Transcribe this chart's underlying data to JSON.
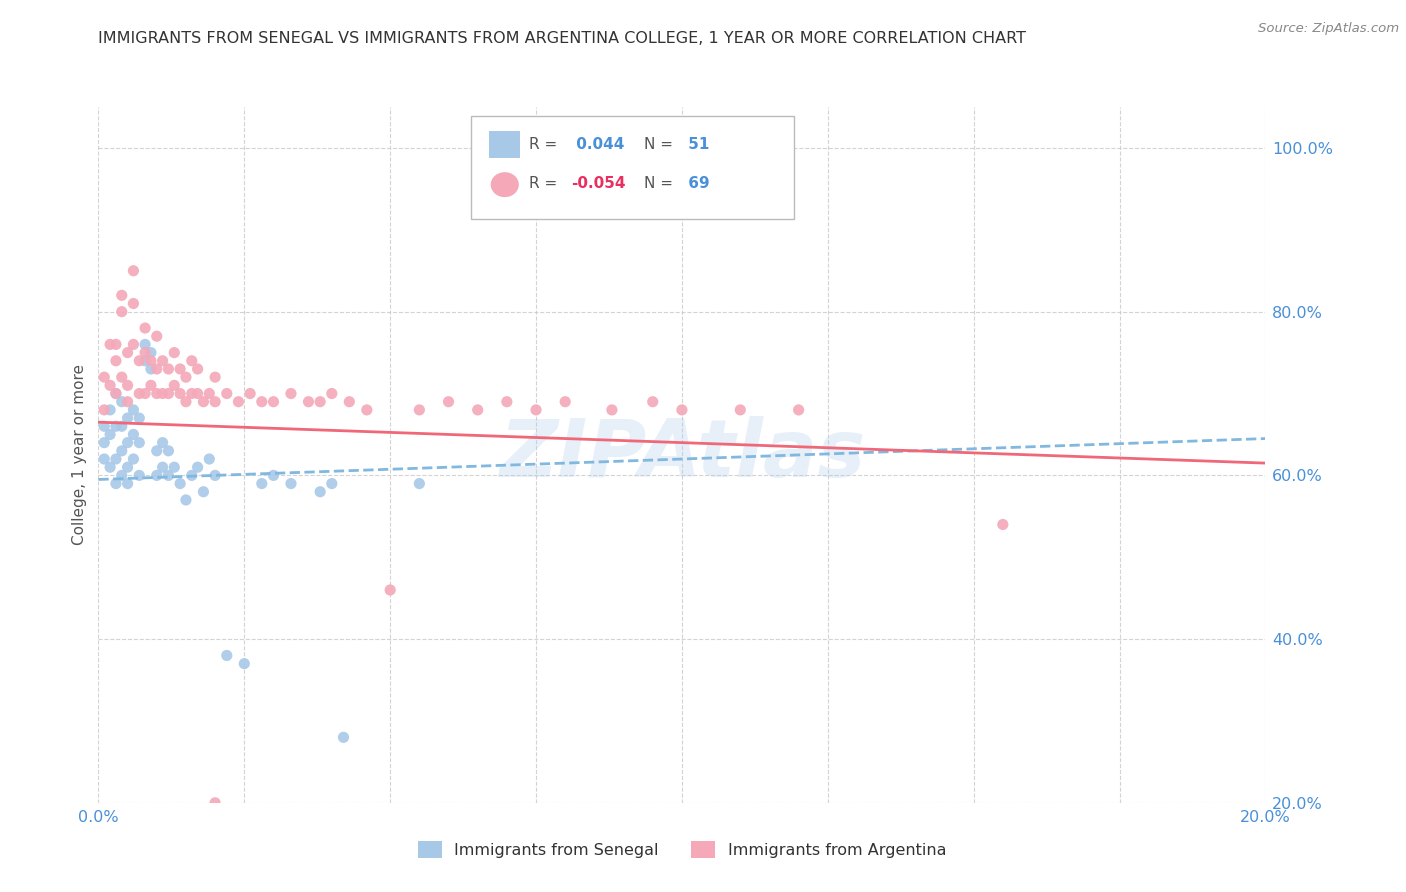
{
  "title": "IMMIGRANTS FROM SENEGAL VS IMMIGRANTS FROM ARGENTINA COLLEGE, 1 YEAR OR MORE CORRELATION CHART",
  "source": "Source: ZipAtlas.com",
  "ylabel": "College, 1 year or more",
  "xmin": 0.0,
  "xmax": 0.2,
  "ymin": 0.2,
  "ymax": 1.05,
  "yticks": [
    0.2,
    0.4,
    0.6,
    0.8,
    1.0
  ],
  "ytick_labels": [
    "20.0%",
    "40.0%",
    "60.0%",
    "80.0%",
    "100.0%"
  ],
  "xticks": [
    0.0,
    0.025,
    0.05,
    0.075,
    0.1,
    0.125,
    0.15,
    0.175,
    0.2
  ],
  "xtick_labels": [
    "0.0%",
    "",
    "",
    "",
    "",
    "",
    "",
    "",
    "20.0%"
  ],
  "senegal_R": 0.044,
  "senegal_N": 51,
  "argentina_R": -0.054,
  "argentina_N": 69,
  "watermark": "ZIPAtlas",
  "senegal_color": "#a8c8e8",
  "argentina_color": "#f4a8b8",
  "senegal_line_color": "#80b8e0",
  "argentina_line_color": "#f06878",
  "legend_senegal_R_color": "#4a90d8",
  "legend_argentina_R_color": "#e83060",
  "legend_N_color": "#4a90d8",
  "axis_label_color": "#4a90d8",
  "title_color": "#333333",
  "grid_color": "#c8c8c8",
  "senegal_x": [
    0.001,
    0.001,
    0.001,
    0.002,
    0.002,
    0.002,
    0.003,
    0.003,
    0.003,
    0.003,
    0.004,
    0.004,
    0.004,
    0.004,
    0.005,
    0.005,
    0.005,
    0.005,
    0.006,
    0.006,
    0.006,
    0.007,
    0.007,
    0.007,
    0.008,
    0.008,
    0.009,
    0.009,
    0.01,
    0.01,
    0.011,
    0.011,
    0.012,
    0.012,
    0.013,
    0.014,
    0.015,
    0.016,
    0.017,
    0.018,
    0.019,
    0.02,
    0.022,
    0.025,
    0.028,
    0.03,
    0.033,
    0.038,
    0.04,
    0.042,
    0.055
  ],
  "senegal_y": [
    0.62,
    0.64,
    0.66,
    0.61,
    0.65,
    0.68,
    0.59,
    0.62,
    0.66,
    0.7,
    0.6,
    0.63,
    0.66,
    0.69,
    0.61,
    0.64,
    0.67,
    0.59,
    0.62,
    0.65,
    0.68,
    0.6,
    0.64,
    0.67,
    0.74,
    0.76,
    0.75,
    0.73,
    0.6,
    0.63,
    0.61,
    0.64,
    0.6,
    0.63,
    0.61,
    0.59,
    0.57,
    0.6,
    0.61,
    0.58,
    0.62,
    0.6,
    0.38,
    0.37,
    0.59,
    0.6,
    0.59,
    0.58,
    0.59,
    0.28,
    0.59
  ],
  "argentina_x": [
    0.001,
    0.001,
    0.002,
    0.002,
    0.003,
    0.003,
    0.003,
    0.004,
    0.004,
    0.004,
    0.005,
    0.005,
    0.005,
    0.006,
    0.006,
    0.006,
    0.007,
    0.007,
    0.008,
    0.008,
    0.008,
    0.009,
    0.009,
    0.01,
    0.01,
    0.01,
    0.011,
    0.011,
    0.012,
    0.012,
    0.013,
    0.013,
    0.014,
    0.014,
    0.015,
    0.015,
    0.016,
    0.016,
    0.017,
    0.017,
    0.018,
    0.019,
    0.02,
    0.02,
    0.022,
    0.024,
    0.026,
    0.028,
    0.03,
    0.033,
    0.036,
    0.038,
    0.04,
    0.043,
    0.046,
    0.05,
    0.055,
    0.06,
    0.065,
    0.07,
    0.075,
    0.08,
    0.088,
    0.095,
    0.1,
    0.11,
    0.12,
    0.155,
    0.02
  ],
  "argentina_y": [
    0.68,
    0.72,
    0.71,
    0.76,
    0.7,
    0.74,
    0.76,
    0.72,
    0.8,
    0.82,
    0.71,
    0.75,
    0.69,
    0.76,
    0.81,
    0.85,
    0.7,
    0.74,
    0.7,
    0.75,
    0.78,
    0.71,
    0.74,
    0.7,
    0.73,
    0.77,
    0.7,
    0.74,
    0.7,
    0.73,
    0.71,
    0.75,
    0.7,
    0.73,
    0.69,
    0.72,
    0.7,
    0.74,
    0.7,
    0.73,
    0.69,
    0.7,
    0.69,
    0.72,
    0.7,
    0.69,
    0.7,
    0.69,
    0.69,
    0.7,
    0.69,
    0.69,
    0.7,
    0.69,
    0.68,
    0.46,
    0.68,
    0.69,
    0.68,
    0.69,
    0.68,
    0.69,
    0.68,
    0.69,
    0.68,
    0.68,
    0.68,
    0.54,
    0.2
  ],
  "senegal_trendline_x": [
    0.0,
    0.2
  ],
  "senegal_trendline_y": [
    0.595,
    0.645
  ],
  "argentina_trendline_x": [
    0.0,
    0.2
  ],
  "argentina_trendline_y": [
    0.665,
    0.615
  ]
}
